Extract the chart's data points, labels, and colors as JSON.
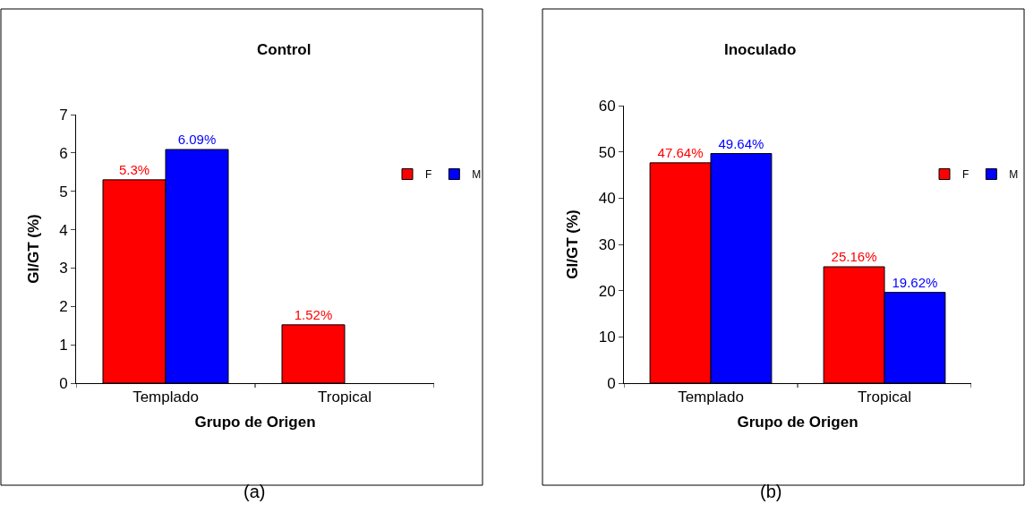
{
  "chart_data": [
    {
      "type": "bar",
      "title": "Control",
      "xlabel": "Grupo de Origen",
      "ylabel": "GI/GT (%)",
      "categories": [
        "Templado",
        "Tropical"
      ],
      "series": [
        {
          "name": "F",
          "color": "#ff0000",
          "values": [
            5.3,
            1.52
          ],
          "value_labels": [
            "5.3%",
            "1.52%"
          ]
        },
        {
          "name": "M",
          "color": "#0000ff",
          "values": [
            6.09,
            null
          ],
          "value_labels": [
            "6.09%",
            null
          ]
        }
      ],
      "ylim": [
        0,
        7
      ],
      "yticks": [
        0,
        1,
        2,
        3,
        4,
        5,
        6,
        7
      ],
      "legend": "right",
      "annotations": [
        "(a)"
      ]
    },
    {
      "type": "bar",
      "title": "Inoculado",
      "xlabel": "Grupo de Origen",
      "ylabel": "GI/GT (%)",
      "categories": [
        "Templado",
        "Tropical"
      ],
      "series": [
        {
          "name": "F",
          "color": "#ff0000",
          "values": [
            47.64,
            25.16
          ],
          "value_labels": [
            "47.64%",
            "25.16%"
          ]
        },
        {
          "name": "M",
          "color": "#0000ff",
          "values": [
            49.64,
            19.62
          ],
          "value_labels": [
            "49.64%",
            "19.62%"
          ]
        }
      ],
      "ylim": [
        0,
        60
      ],
      "yticks": [
        0,
        10,
        20,
        30,
        40,
        50,
        60
      ],
      "legend": "right",
      "annotations": [
        "(b)"
      ]
    }
  ]
}
